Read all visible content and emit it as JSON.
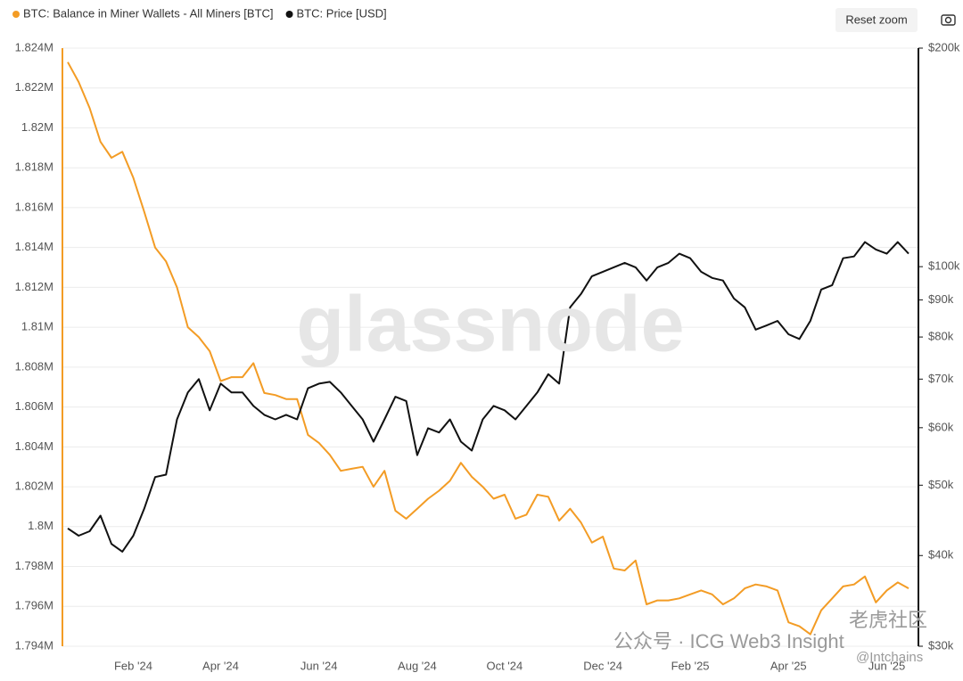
{
  "chart_data": {
    "type": "line",
    "categories": [
      null,
      null,
      null,
      null,
      null,
      null,
      "Feb '24",
      null,
      null,
      null,
      null,
      null,
      null,
      null,
      "Apr '24",
      null,
      null,
      null,
      null,
      null,
      null,
      null,
      null,
      "Jun '24",
      null,
      null,
      null,
      null,
      null,
      null,
      null,
      null,
      "Aug '24",
      null,
      null,
      null,
      null,
      null,
      null,
      null,
      "Oct '24",
      null,
      null,
      null,
      null,
      null,
      null,
      null,
      null,
      "Dec '24",
      null,
      null,
      null,
      null,
      null,
      null,
      null,
      "Feb '25",
      null,
      null,
      null,
      null,
      null,
      null,
      null,
      null,
      "Apr '25",
      null,
      null,
      null,
      null,
      null,
      null,
      null,
      null,
      "Jun '25",
      null,
      null
    ],
    "series": [
      {
        "name": "BTC: Balance in Miner Wallets - All Miners [BTC]",
        "color": "#f39c25",
        "axis": "y",
        "values": [
          1823300,
          1822300,
          1821000,
          1819300,
          1818500,
          1818800,
          1817500,
          1815800,
          1814000,
          1813300,
          1812000,
          1810000,
          1809500,
          1808800,
          1807300,
          1807500,
          1807500,
          1808200,
          1806700,
          1806600,
          1806400,
          1806400,
          1804600,
          1804200,
          1803600,
          1802800,
          1802900,
          1803000,
          1802000,
          1802800,
          1800800,
          1800400,
          1800900,
          1801400,
          1801800,
          1802300,
          1803200,
          1802500,
          1802000,
          1801400,
          1801600,
          1800400,
          1800600,
          1801600,
          1801500,
          1800300,
          1800900,
          1800200,
          1799200,
          1799500,
          1797900,
          1797800,
          1798300,
          1796100,
          1796300,
          1796300,
          1796400,
          1796600,
          1796800,
          1796600,
          1796100,
          1796400,
          1796900,
          1797100,
          1797000,
          1796800,
          1795200,
          1795000,
          1794600,
          1795800,
          1796400,
          1797000,
          1797100,
          1797500,
          1796200,
          1796800,
          1797200,
          1796900
        ]
      },
      {
        "name": "BTC: Price [USD]",
        "color": "#111111",
        "axis": "y2",
        "values": [
          43600,
          42600,
          43200,
          45400,
          41500,
          40500,
          42600,
          46400,
          51300,
          51700,
          61600,
          67100,
          70000,
          63400,
          69000,
          67100,
          67100,
          64300,
          62500,
          61600,
          62500,
          61600,
          68000,
          69000,
          69400,
          67100,
          64300,
          61600,
          57400,
          61600,
          66200,
          65300,
          55000,
          59900,
          59100,
          61600,
          57400,
          55800,
          61600,
          64300,
          63400,
          61600,
          64300,
          67100,
          71100,
          69000,
          87900,
          91700,
          97000,
          98400,
          99800,
          101200,
          99800,
          95700,
          99800,
          101200,
          104200,
          102700,
          98400,
          96500,
          95700,
          90400,
          87900,
          81900,
          83000,
          84200,
          80700,
          79500,
          84200,
          93000,
          94300,
          102700,
          103300,
          108100,
          105600,
          104200,
          108100,
          104200
        ]
      }
    ],
    "ylim": [
      1794000,
      1824000
    ],
    "yticks": [
      {
        "value": 1824000,
        "label": "1.824M"
      },
      {
        "value": 1822000,
        "label": "1.822M"
      },
      {
        "value": 1820000,
        "label": "1.82M"
      },
      {
        "value": 1818000,
        "label": "1.818M"
      },
      {
        "value": 1816000,
        "label": "1.816M"
      },
      {
        "value": 1814000,
        "label": "1.814M"
      },
      {
        "value": 1812000,
        "label": "1.812M"
      },
      {
        "value": 1810000,
        "label": "1.81M"
      },
      {
        "value": 1808000,
        "label": "1.808M"
      },
      {
        "value": 1806000,
        "label": "1.806M"
      },
      {
        "value": 1804000,
        "label": "1.804M"
      },
      {
        "value": 1802000,
        "label": "1.802M"
      },
      {
        "value": 1800000,
        "label": "1.8M"
      },
      {
        "value": 1798000,
        "label": "1.798M"
      },
      {
        "value": 1796000,
        "label": "1.796M"
      },
      {
        "value": 1794000,
        "label": "1.794M"
      }
    ],
    "y2lim": [
      30000,
      200000
    ],
    "y2scale": "log",
    "y2ticks": [
      {
        "value": 200000,
        "label": "$200k"
      },
      {
        "value": 100000,
        "label": "$100k"
      },
      {
        "value": 90000,
        "label": "$90k"
      },
      {
        "value": 80000,
        "label": "$80k"
      },
      {
        "value": 70000,
        "label": "$70k"
      },
      {
        "value": 60000,
        "label": "$60k"
      },
      {
        "value": 50000,
        "label": "$50k"
      },
      {
        "value": 40000,
        "label": "$40k"
      },
      {
        "value": 30000,
        "label": "$30k"
      }
    ],
    "grid": true,
    "legend": "top-left"
  },
  "toolbar": {
    "reset_zoom": "Reset zoom"
  },
  "watermarks": [
    "glassnode",
    "公众号 · ICG Web3 Insight",
    "老虎社区",
    "@Intchains"
  ]
}
